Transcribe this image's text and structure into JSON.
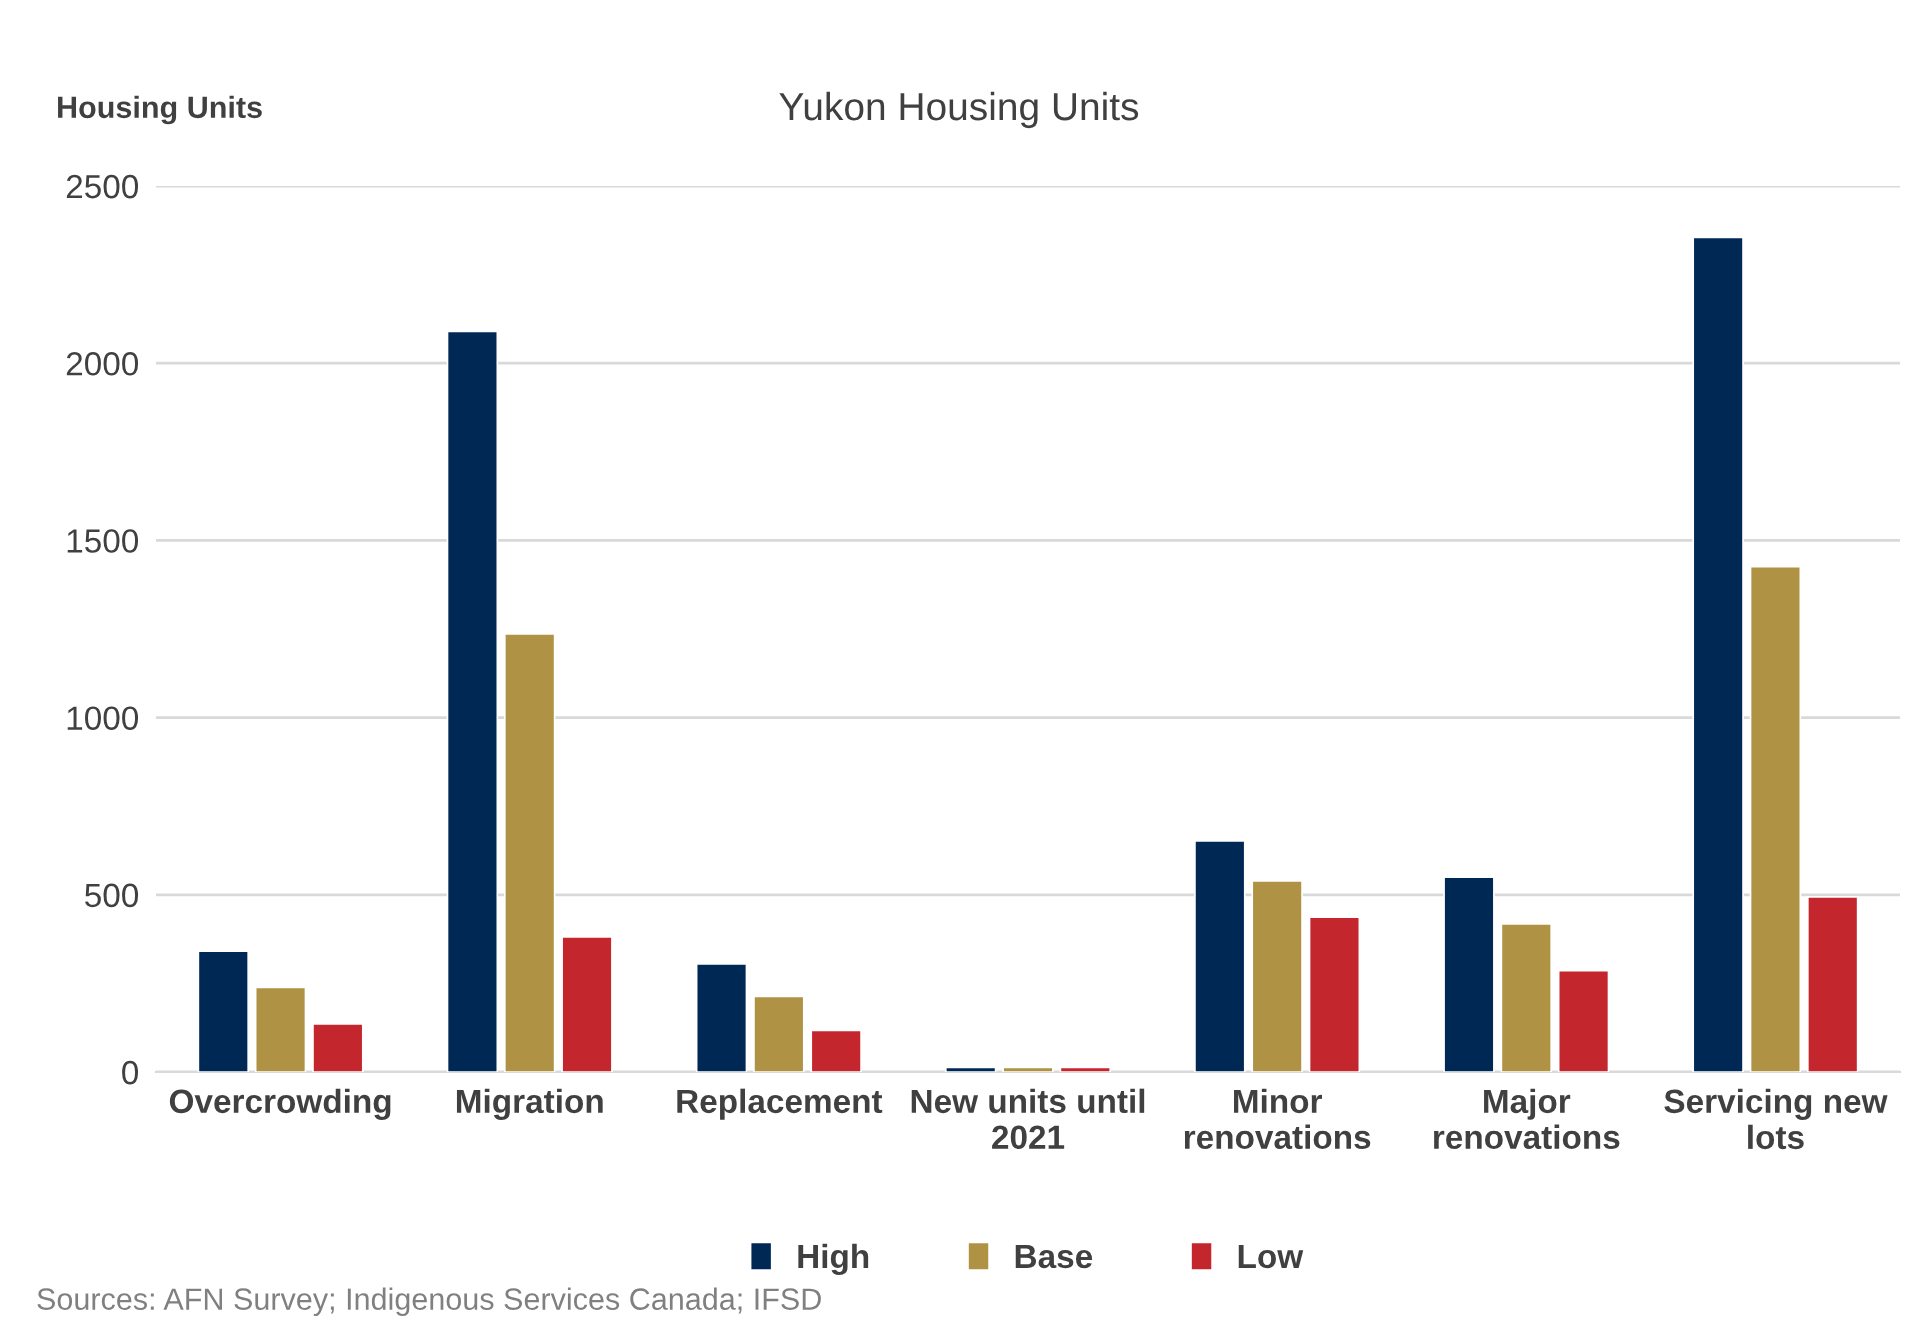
{
  "chart_data": {
    "type": "bar",
    "title": "Yukon Housing Units",
    "ylabel": "Housing Units",
    "categories": [
      "Overcrowding",
      "Migration",
      "Replacement",
      "New units until\n2021",
      "Minor\nrenovations",
      "Major\nrenovations",
      "Servicing new\nlots"
    ],
    "series": [
      {
        "name": "High",
        "color": "#002855",
        "values": [
          341,
          2090,
          305,
          13,
          652,
          550,
          2355
        ]
      },
      {
        "name": "Base",
        "color": "#b09244",
        "values": [
          239,
          1236,
          213,
          13,
          539,
          418,
          1426
        ]
      },
      {
        "name": "Low",
        "color": "#c4262e",
        "values": [
          136,
          381,
          117,
          13,
          437,
          286,
          494
        ]
      }
    ],
    "ylim": [
      0,
      2500
    ],
    "yticks": [
      0,
      500,
      1000,
      1500,
      2000,
      2500
    ],
    "grid": "y",
    "legend": "bottom",
    "annotations": [
      "Sources: AFN Survey; Indigenous Services Canada; IFSD"
    ]
  }
}
